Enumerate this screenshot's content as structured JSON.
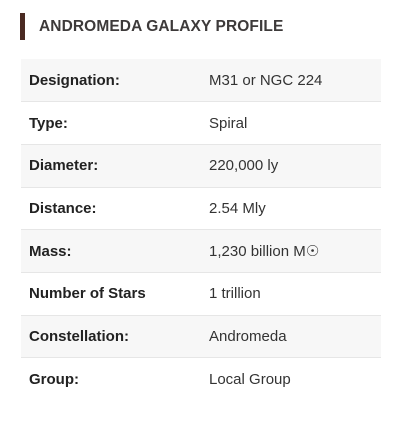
{
  "header": {
    "title": "ANDROMEDA GALAXY PROFILE"
  },
  "rows": [
    {
      "label": "Designation:",
      "value": "M31 or NGC 224"
    },
    {
      "label": "Type:",
      "value": "Spiral"
    },
    {
      "label": "Diameter:",
      "value": "220,000 ly"
    },
    {
      "label": "Distance:",
      "value": "2.54 Mly"
    },
    {
      "label": "Mass:",
      "value": "1,230 billion M☉"
    },
    {
      "label": "Number of Stars",
      "value": "1 trillion"
    },
    {
      "label": "Constellation:",
      "value": "Andromeda"
    },
    {
      "label": "Group:",
      "value": "Local Group"
    }
  ],
  "colors": {
    "accent_bar": "#4a2a22",
    "row_stripe": "#f7f7f7",
    "divider": "#e6e6e6"
  }
}
